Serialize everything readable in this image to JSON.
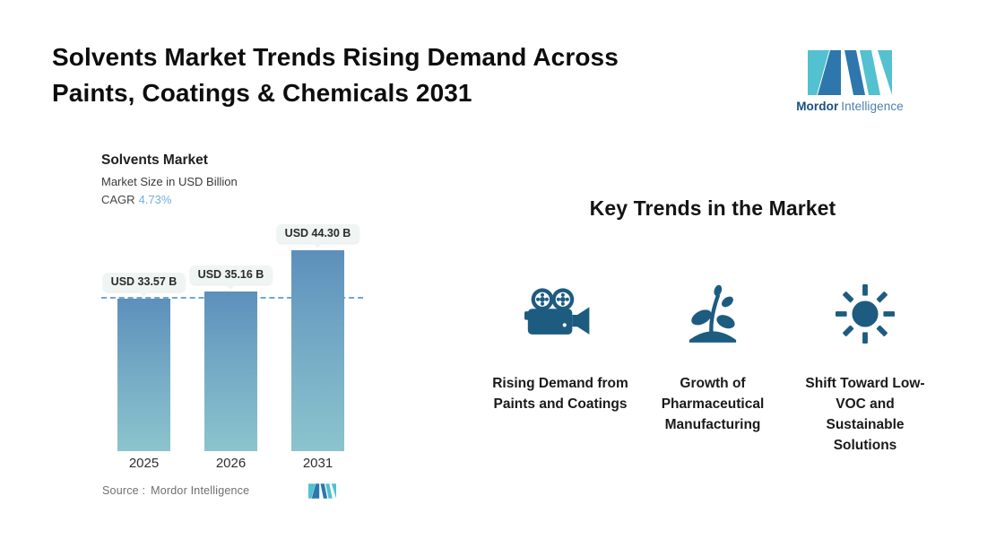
{
  "page": {
    "title_line1": "Solvents Market Trends Rising Demand Across",
    "title_line2": "Paints, Coatings & Chemicals 2031"
  },
  "brand": {
    "name_bold": "Mordor",
    "name_light": "Intelligence",
    "teal": "#53c1cf",
    "blue": "#2e77ac"
  },
  "chart": {
    "source_label": "Source :",
    "source_value": "Mordor Intelligence"
  },
  "chart_data": {
    "type": "bar",
    "title": "Solvents Market",
    "subtitle": "Market Size in USD Billion",
    "cagr_label": "CAGR",
    "cagr_value": "4.73%",
    "categories": [
      "2025",
      "2026",
      "2031"
    ],
    "values": [
      33.57,
      35.16,
      44.3
    ],
    "bar_labels": [
      "USD 33.57 B",
      "USD 35.16 B",
      "USD 44.30 B"
    ],
    "unit": "USD Billion",
    "ylim": [
      0,
      50
    ],
    "baseline_dash_at_value": 33.57,
    "legend": "none",
    "grid": "off",
    "bar_color_top": "#5c90bc",
    "bar_color_bottom": "#8bc4cd",
    "dash_line_color": "#6fa8d1"
  },
  "key_trends": {
    "heading": "Key Trends in the Market",
    "items": [
      {
        "icon": "video-camera-icon",
        "label": "Rising Demand from Paints and Coatings"
      },
      {
        "icon": "plant-sprout-icon",
        "label": "Growth of Pharmaceutical Manufacturing"
      },
      {
        "icon": "sun-icon",
        "label": "Shift Toward Low-VOC and Sustainable Solutions"
      }
    ]
  }
}
